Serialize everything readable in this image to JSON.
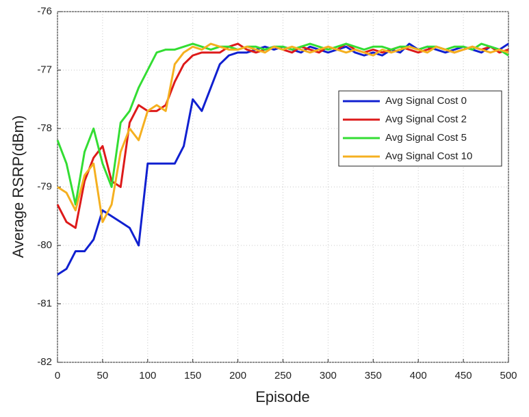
{
  "chart_data": {
    "type": "line",
    "xlabel": "Episode",
    "ylabel": "Average RSRP(dBm)",
    "x": [
      0,
      10,
      20,
      30,
      40,
      50,
      60,
      70,
      80,
      90,
      100,
      110,
      120,
      130,
      140,
      150,
      160,
      170,
      180,
      190,
      200,
      210,
      220,
      230,
      240,
      250,
      260,
      270,
      280,
      290,
      300,
      310,
      320,
      330,
      340,
      350,
      360,
      370,
      380,
      390,
      400,
      410,
      420,
      430,
      440,
      450,
      460,
      470,
      480,
      490,
      500
    ],
    "xlim": [
      0,
      500
    ],
    "ylim": [
      -82,
      -76
    ],
    "xticks": [
      0,
      50,
      100,
      150,
      200,
      250,
      300,
      350,
      400,
      450,
      500
    ],
    "yticks": [
      -82,
      -81,
      -80,
      -79,
      -78,
      -77,
      -76
    ],
    "grid": true,
    "legend": "upper-right",
    "series": [
      {
        "name": "Avg Signal Cost 0",
        "color": "#1020d0",
        "values": [
          -80.5,
          -80.4,
          -80.1,
          -80.1,
          -79.9,
          -79.4,
          -79.5,
          -79.6,
          -79.7,
          -80.0,
          -78.6,
          -78.6,
          -78.6,
          -78.6,
          -78.3,
          -77.5,
          -77.7,
          -77.3,
          -76.9,
          -76.75,
          -76.7,
          -76.7,
          -76.65,
          -76.6,
          -76.65,
          -76.6,
          -76.65,
          -76.7,
          -76.6,
          -76.65,
          -76.7,
          -76.65,
          -76.6,
          -76.7,
          -76.75,
          -76.7,
          -76.75,
          -76.65,
          -76.7,
          -76.55,
          -76.65,
          -76.6,
          -76.65,
          -76.7,
          -76.65,
          -76.6,
          -76.65,
          -76.7,
          -76.6,
          -76.65,
          -76.55
        ]
      },
      {
        "name": "Avg Signal Cost 2",
        "color": "#dd1a1a",
        "values": [
          -79.3,
          -79.6,
          -79.7,
          -78.9,
          -78.5,
          -78.3,
          -78.9,
          -79.0,
          -77.9,
          -77.6,
          -77.7,
          -77.7,
          -77.6,
          -77.2,
          -76.9,
          -76.75,
          -76.7,
          -76.7,
          -76.7,
          -76.6,
          -76.55,
          -76.65,
          -76.7,
          -76.65,
          -76.6,
          -76.65,
          -76.7,
          -76.6,
          -76.65,
          -76.7,
          -76.6,
          -76.65,
          -76.55,
          -76.65,
          -76.7,
          -76.65,
          -76.7,
          -76.65,
          -76.6,
          -76.65,
          -76.7,
          -76.65,
          -76.6,
          -76.65,
          -76.7,
          -76.65,
          -76.6,
          -76.65,
          -76.6,
          -76.7,
          -76.65
        ]
      },
      {
        "name": "Avg Signal Cost 5",
        "color": "#33dd33",
        "values": [
          -78.2,
          -78.6,
          -79.3,
          -78.4,
          -78.0,
          -78.6,
          -79.0,
          -77.9,
          -77.7,
          -77.3,
          -77.0,
          -76.7,
          -76.65,
          -76.65,
          -76.6,
          -76.55,
          -76.6,
          -76.65,
          -76.6,
          -76.6,
          -76.65,
          -76.6,
          -76.6,
          -76.65,
          -76.6,
          -76.6,
          -76.65,
          -76.6,
          -76.55,
          -76.6,
          -76.65,
          -76.6,
          -76.55,
          -76.6,
          -76.65,
          -76.6,
          -76.6,
          -76.65,
          -76.6,
          -76.6,
          -76.65,
          -76.6,
          -76.6,
          -76.65,
          -76.6,
          -76.6,
          -76.65,
          -76.55,
          -76.6,
          -76.65,
          -76.75
        ]
      },
      {
        "name": "Avg Signal Cost 10",
        "color": "#f5b020",
        "values": [
          -79.0,
          -79.1,
          -79.4,
          -78.8,
          -78.6,
          -79.6,
          -79.3,
          -78.4,
          -78.0,
          -78.2,
          -77.7,
          -77.6,
          -77.7,
          -76.9,
          -76.7,
          -76.6,
          -76.65,
          -76.55,
          -76.6,
          -76.65,
          -76.65,
          -76.6,
          -76.65,
          -76.7,
          -76.6,
          -76.65,
          -76.6,
          -76.65,
          -76.7,
          -76.65,
          -76.6,
          -76.65,
          -76.7,
          -76.65,
          -76.7,
          -76.75,
          -76.65,
          -76.7,
          -76.65,
          -76.6,
          -76.65,
          -76.7,
          -76.6,
          -76.65,
          -76.7,
          -76.65,
          -76.6,
          -76.65,
          -76.7,
          -76.65,
          -76.7
        ]
      }
    ]
  }
}
